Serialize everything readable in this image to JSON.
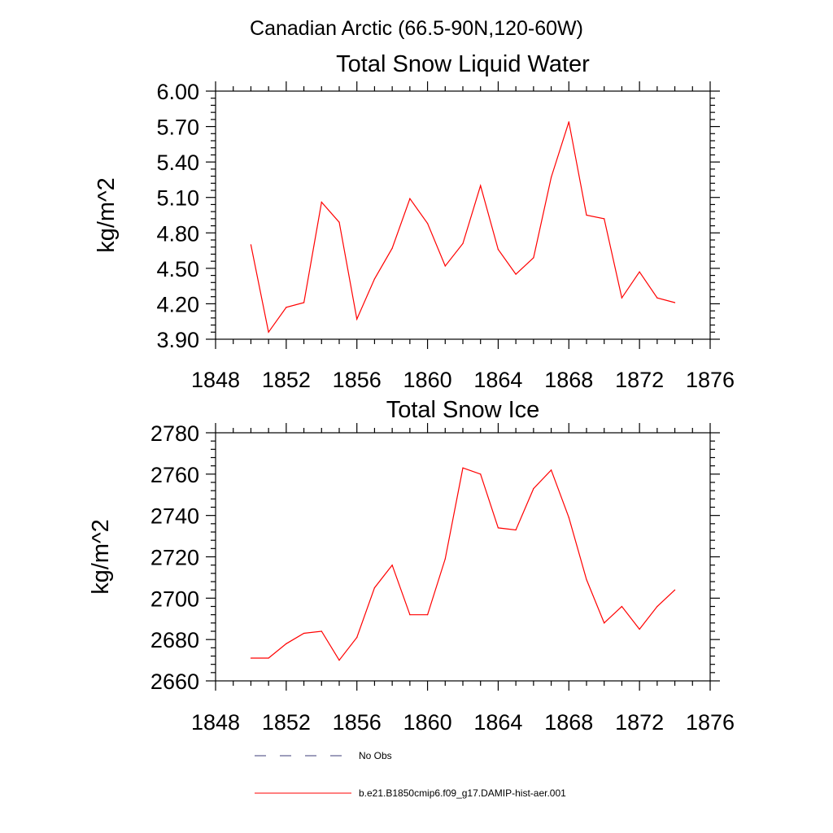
{
  "suptitle": "Canadian Arctic (66.5-90N,120-60W)",
  "colors": {
    "model": "#ff0000",
    "obs": "#3c3c78",
    "axis": "#000000"
  },
  "legend": [
    {
      "label": "No Obs",
      "style": "dashed",
      "color": "#3c3c78"
    },
    {
      "label": "b.e21.B1850cmip6.f09_g17.DAMIP-hist-aer.001",
      "style": "solid",
      "color": "#ff0000"
    }
  ],
  "chart_data": [
    {
      "type": "line",
      "title": "Total Snow Liquid Water",
      "xlabel": "",
      "ylabel": "kg/m^2",
      "xlim": [
        1848,
        1876
      ],
      "ylim": [
        3.9,
        6.0
      ],
      "x_ticks": [
        "1848",
        "1852",
        "1856",
        "1860",
        "1864",
        "1868",
        "1872",
        "1876"
      ],
      "y_ticks": [
        "3.90",
        "4.20",
        "4.50",
        "4.80",
        "5.10",
        "5.40",
        "5.70",
        "6.00"
      ],
      "x": [
        1850,
        1851,
        1852,
        1853,
        1854,
        1855,
        1856,
        1857,
        1858,
        1859,
        1860,
        1861,
        1862,
        1863,
        1864,
        1865,
        1866,
        1867,
        1868,
        1869,
        1870,
        1871,
        1872,
        1873,
        1874
      ],
      "series": [
        {
          "values": [
            4.7,
            3.96,
            4.17,
            4.21,
            5.06,
            4.89,
            4.07,
            4.41,
            4.67,
            5.09,
            4.88,
            4.52,
            4.71,
            5.2,
            4.66,
            4.45,
            4.59,
            5.27,
            5.74,
            4.95,
            4.92,
            4.25,
            4.47,
            4.25,
            4.21
          ]
        }
      ]
    },
    {
      "type": "line",
      "title": "Total Snow Ice",
      "xlabel": "",
      "ylabel": "kg/m^2",
      "xlim": [
        1848,
        1876
      ],
      "ylim": [
        2660,
        2780
      ],
      "x_ticks": [
        "1848",
        "1852",
        "1856",
        "1860",
        "1864",
        "1868",
        "1872",
        "1876"
      ],
      "y_ticks": [
        "2660",
        "2680",
        "2700",
        "2720",
        "2740",
        "2760",
        "2780"
      ],
      "x": [
        1850,
        1851,
        1852,
        1853,
        1854,
        1855,
        1856,
        1857,
        1858,
        1859,
        1860,
        1861,
        1862,
        1863,
        1864,
        1865,
        1866,
        1867,
        1868,
        1869,
        1870,
        1871,
        1872,
        1873,
        1874
      ],
      "series": [
        {
          "values": [
            2671,
            2671,
            2678,
            2683,
            2684,
            2670,
            2681,
            2705,
            2716,
            2692,
            2692,
            2719,
            2763,
            2760,
            2734,
            2733,
            2753,
            2762,
            2739,
            2709,
            2688,
            2696,
            2685,
            2696,
            2704
          ]
        }
      ]
    }
  ]
}
